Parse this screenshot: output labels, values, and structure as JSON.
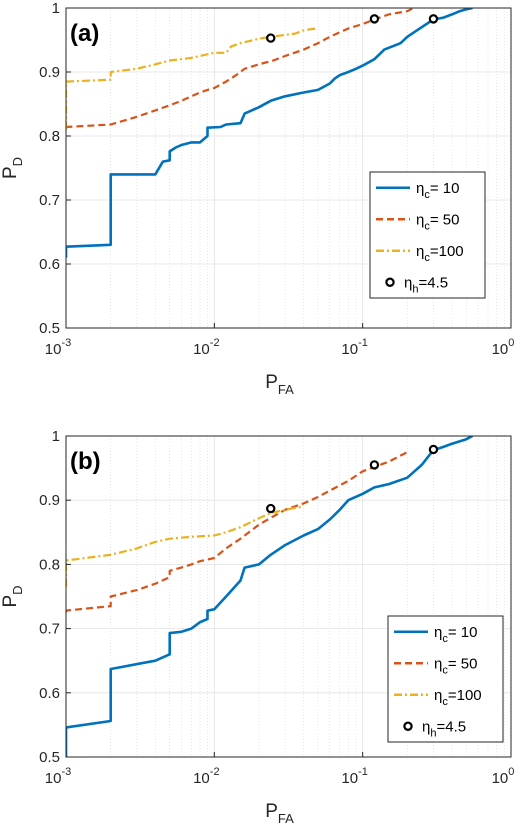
{
  "chart_data": [
    {
      "type": "line",
      "panel_label": "(a)",
      "xlabel": "P",
      "xlabel_sub": "FA",
      "ylabel": "P",
      "ylabel_sub": "D",
      "xscale": "log",
      "xlim": [
        0.001,
        1
      ],
      "ylim": [
        0.5,
        1
      ],
      "x_ticks": [
        0.001,
        0.01,
        0.1,
        1
      ],
      "x_tick_labels": [
        {
          "base": "10",
          "exp": "-3"
        },
        {
          "base": "10",
          "exp": "-2"
        },
        {
          "base": "10",
          "exp": "-1"
        },
        {
          "base": "10",
          "exp": "0"
        }
      ],
      "y_ticks": [
        "0.5",
        "0.6",
        "0.7",
        "0.8",
        "0.9",
        "1"
      ],
      "grid": true,
      "legend_position": "right",
      "series": [
        {
          "legend": {
            "symbol": "η",
            "sub": "c",
            "text": "= 10"
          },
          "color": "#0072BD",
          "style": "solid",
          "x": [
            0.001,
            0.001,
            0.002,
            0.002,
            0.004,
            0.0045,
            0.005,
            0.005,
            0.0055,
            0.006,
            0.007,
            0.008,
            0.009,
            0.009,
            0.011,
            0.012,
            0.015,
            0.016,
            0.02,
            0.024,
            0.03,
            0.04,
            0.05,
            0.06,
            0.065,
            0.07,
            0.08,
            0.09,
            0.1,
            0.12,
            0.14,
            0.18,
            0.2,
            0.25,
            0.3,
            0.35,
            0.4,
            0.45,
            0.5,
            0.55
          ],
          "y": [
            0.61,
            0.627,
            0.63,
            0.74,
            0.74,
            0.76,
            0.762,
            0.776,
            0.782,
            0.786,
            0.79,
            0.79,
            0.8,
            0.813,
            0.814,
            0.818,
            0.82,
            0.835,
            0.845,
            0.855,
            0.862,
            0.868,
            0.872,
            0.882,
            0.89,
            0.895,
            0.9,
            0.905,
            0.91,
            0.92,
            0.935,
            0.945,
            0.955,
            0.97,
            0.982,
            0.985,
            0.99,
            0.995,
            0.998,
            1.0
          ]
        },
        {
          "legend": {
            "symbol": "η",
            "sub": "c",
            "text": "= 50"
          },
          "color": "#D95319",
          "style": "dashed",
          "x": [
            0.001,
            0.001,
            0.002,
            0.003,
            0.004,
            0.005,
            0.006,
            0.007,
            0.008,
            0.009,
            0.01,
            0.012,
            0.014,
            0.016,
            0.02,
            0.025,
            0.03,
            0.04,
            0.05,
            0.06,
            0.07,
            0.08,
            0.1,
            0.12,
            0.15,
            0.2,
            0.22
          ],
          "y": [
            0.815,
            0.814,
            0.818,
            0.83,
            0.84,
            0.848,
            0.855,
            0.862,
            0.868,
            0.872,
            0.875,
            0.885,
            0.895,
            0.905,
            0.912,
            0.918,
            0.925,
            0.935,
            0.945,
            0.955,
            0.962,
            0.968,
            0.975,
            0.982,
            0.99,
            0.995,
            1.0
          ]
        },
        {
          "legend": {
            "symbol": "η",
            "sub": "c",
            "text": "=100"
          },
          "color": "#EDB120",
          "style": "dashdot",
          "x": [
            0.001,
            0.001,
            0.002,
            0.002,
            0.003,
            0.004,
            0.005,
            0.007,
            0.01,
            0.012,
            0.013,
            0.015,
            0.02,
            0.024,
            0.03,
            0.035,
            0.04,
            0.045,
            0.05
          ],
          "y": [
            0.81,
            0.885,
            0.888,
            0.9,
            0.905,
            0.912,
            0.918,
            0.922,
            0.93,
            0.93,
            0.94,
            0.945,
            0.952,
            0.955,
            0.958,
            0.96,
            0.965,
            0.967,
            0.968
          ]
        }
      ],
      "markers": {
        "legend": {
          "symbol": "η",
          "sub": "h",
          "text": "=4.5"
        },
        "x": [
          0.024,
          0.12,
          0.3
        ],
        "y": [
          0.953,
          0.983,
          0.983
        ]
      }
    },
    {
      "type": "line",
      "panel_label": "(b)",
      "xlabel": "P",
      "xlabel_sub": "FA",
      "ylabel": "P",
      "ylabel_sub": "D",
      "xscale": "log",
      "xlim": [
        0.001,
        1
      ],
      "ylim": [
        0.5,
        1
      ],
      "x_ticks": [
        0.001,
        0.01,
        0.1,
        1
      ],
      "x_tick_labels": [
        {
          "base": "10",
          "exp": "-3"
        },
        {
          "base": "10",
          "exp": "-2"
        },
        {
          "base": "10",
          "exp": "-1"
        },
        {
          "base": "10",
          "exp": "0"
        }
      ],
      "y_ticks": [
        "0.5",
        "0.6",
        "0.7",
        "0.8",
        "0.9",
        "1"
      ],
      "grid": true,
      "legend_position": "bottom-right",
      "series": [
        {
          "legend": {
            "symbol": "η",
            "sub": "c",
            "text": "= 10"
          },
          "color": "#0072BD",
          "style": "solid",
          "x": [
            0.001,
            0.001,
            0.002,
            0.002,
            0.004,
            0.005,
            0.005,
            0.006,
            0.007,
            0.008,
            0.009,
            0.009,
            0.01,
            0.012,
            0.015,
            0.016,
            0.02,
            0.024,
            0.03,
            0.04,
            0.05,
            0.06,
            0.07,
            0.08,
            0.1,
            0.12,
            0.15,
            0.2,
            0.25,
            0.3,
            0.35,
            0.4,
            0.5,
            0.55
          ],
          "y": [
            0.5,
            0.546,
            0.556,
            0.637,
            0.65,
            0.66,
            0.693,
            0.695,
            0.7,
            0.71,
            0.715,
            0.728,
            0.73,
            0.75,
            0.775,
            0.795,
            0.8,
            0.815,
            0.83,
            0.845,
            0.855,
            0.87,
            0.885,
            0.9,
            0.91,
            0.92,
            0.925,
            0.935,
            0.955,
            0.978,
            0.983,
            0.988,
            0.995,
            1.0
          ]
        },
        {
          "legend": {
            "symbol": "η",
            "sub": "c",
            "text": "= 50"
          },
          "color": "#D95319",
          "style": "dashed",
          "x": [
            0.001,
            0.001,
            0.002,
            0.002,
            0.003,
            0.004,
            0.005,
            0.005,
            0.006,
            0.007,
            0.008,
            0.01,
            0.012,
            0.015,
            0.02,
            0.025,
            0.03,
            0.04,
            0.05,
            0.06,
            0.08,
            0.1,
            0.12,
            0.15,
            0.2
          ],
          "y": [
            0.725,
            0.728,
            0.735,
            0.75,
            0.76,
            0.77,
            0.78,
            0.79,
            0.795,
            0.8,
            0.805,
            0.81,
            0.825,
            0.84,
            0.862,
            0.875,
            0.885,
            0.895,
            0.905,
            0.915,
            0.93,
            0.945,
            0.952,
            0.96,
            0.975
          ]
        },
        {
          "legend": {
            "symbol": "η",
            "sub": "c",
            "text": "=100"
          },
          "color": "#EDB120",
          "style": "dashdot",
          "x": [
            0.001,
            0.001,
            0.002,
            0.003,
            0.004,
            0.005,
            0.007,
            0.01,
            0.012,
            0.015,
            0.02,
            0.024,
            0.03,
            0.035,
            0.04
          ],
          "y": [
            0.765,
            0.806,
            0.815,
            0.825,
            0.835,
            0.84,
            0.843,
            0.845,
            0.85,
            0.858,
            0.872,
            0.88,
            0.885,
            0.888,
            0.89
          ]
        }
      ],
      "markers": {
        "legend": {
          "symbol": "η",
          "sub": "h",
          "text": "=4.5"
        },
        "x": [
          0.024,
          0.12,
          0.3
        ],
        "y": [
          0.887,
          0.955,
          0.979
        ]
      }
    }
  ]
}
